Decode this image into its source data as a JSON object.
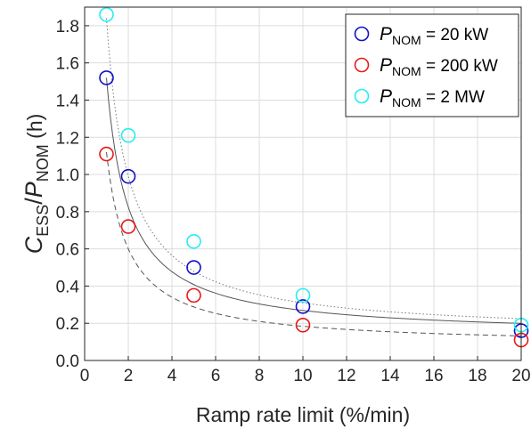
{
  "chart_data": {
    "type": "scatter",
    "xlabel": "Ramp rate limit (%/min)",
    "ylabel": {
      "main": "C",
      "main_sub": "ESS",
      "slash": "/",
      "denom": "P",
      "denom_sub": "NOM",
      "unit": " (h)"
    },
    "xlim": [
      0,
      20
    ],
    "ylim": [
      0,
      1.9
    ],
    "xticks": [
      "0",
      "2",
      "4",
      "6",
      "8",
      "10",
      "12",
      "14",
      "16",
      "18",
      "20"
    ],
    "yticks": [
      "0.0",
      "0.2",
      "0.4",
      "0.6",
      "0.8",
      "1.0",
      "1.2",
      "1.4",
      "1.6",
      "1.8"
    ],
    "grid": true,
    "legend_position": "top-right",
    "series": [
      {
        "name_prefix": "P",
        "name_sub": "NOM",
        "name_suffix": " = 20 kW",
        "color": "#1010c8",
        "line_style": "solid",
        "line_color": "#555555",
        "x": [
          1,
          2,
          5,
          10,
          20
        ],
        "y": [
          1.52,
          0.99,
          0.5,
          0.29,
          0.16
        ],
        "fit": {
          "a": 1.52,
          "c": 0.13
        }
      },
      {
        "name_prefix": "P",
        "name_sub": "NOM",
        "name_suffix": " = 200 kW",
        "color": "#e81818",
        "line_style": "dashed",
        "line_color": "#555555",
        "x": [
          1,
          2,
          5,
          10,
          20
        ],
        "y": [
          1.11,
          0.72,
          0.35,
          0.19,
          0.11
        ],
        "fit": {
          "a": 1.12,
          "c": 0.08
        }
      },
      {
        "name_prefix": "P",
        "name_sub": "NOM",
        "name_suffix": " = 2 MW",
        "color": "#22eef0",
        "line_style": "dotted",
        "line_color": "#777777",
        "x": [
          1,
          2,
          5,
          10,
          20
        ],
        "y": [
          1.86,
          1.21,
          0.64,
          0.35,
          0.19
        ],
        "fit": {
          "a": 1.84,
          "c": 0.14
        }
      }
    ]
  }
}
